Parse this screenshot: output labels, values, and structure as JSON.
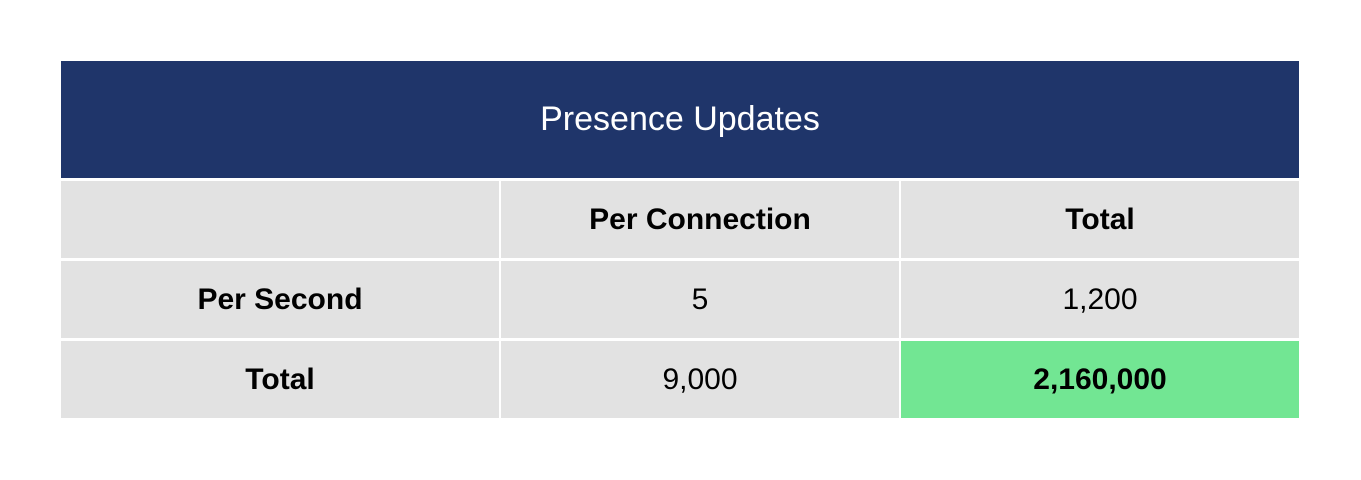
{
  "table": {
    "title": "Presence Updates",
    "columns": [
      "",
      "Per Connection",
      "Total"
    ],
    "rows": [
      {
        "label": "Per Second",
        "per_connection": "5",
        "total": "1,200"
      },
      {
        "label": "Total",
        "per_connection": "9,000",
        "total": "2,160,000"
      }
    ],
    "colors": {
      "header_bg": "#1f356a",
      "cell_bg": "#e2e2e2",
      "highlight_bg": "#72e693"
    }
  }
}
